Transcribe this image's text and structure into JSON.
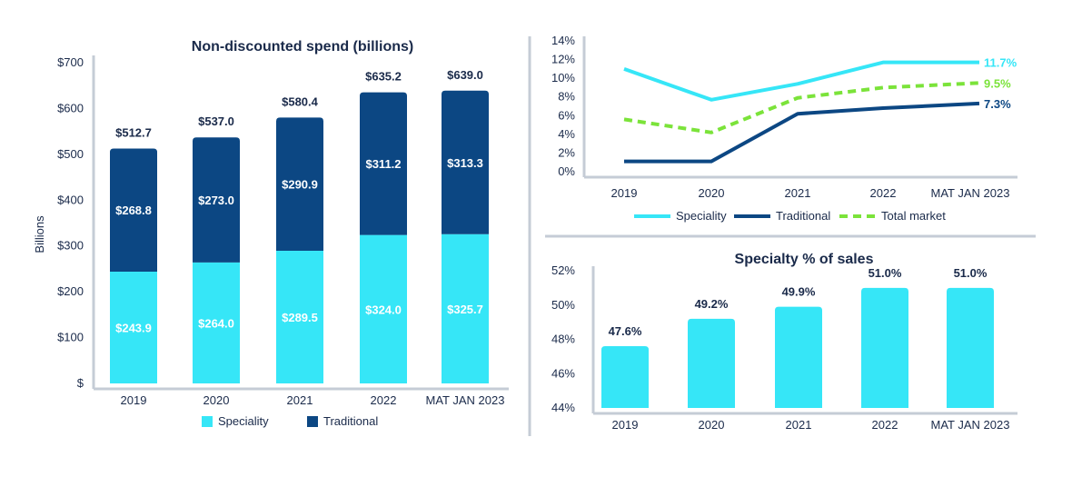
{
  "colors": {
    "speciality": "#36E6F7",
    "traditional": "#0C4783",
    "total_market": "#7BE33A",
    "axis": "#C5CCD6",
    "text": "#1a2a4a"
  },
  "chart_data": [
    {
      "id": "spend",
      "type": "bar",
      "stacked": true,
      "title": "Non-discounted spend (billions)",
      "ylabel": "Billions",
      "ylim": [
        0,
        700
      ],
      "yticks": [
        "$",
        "$100",
        "$200",
        "$300",
        "$400",
        "$500",
        "$600",
        "$700"
      ],
      "categories": [
        "2019",
        "2020",
        "2021",
        "2022",
        "MAT JAN 2023"
      ],
      "series": [
        {
          "name": "Speciality",
          "values": [
            243.9,
            264.0,
            289.5,
            324.0,
            325.7
          ],
          "labels": [
            "$243.9",
            "$264.0",
            "$289.5",
            "$324.0",
            "$325.7"
          ]
        },
        {
          "name": "Traditional",
          "values": [
            268.8,
            273.0,
            290.9,
            311.2,
            313.3
          ],
          "labels": [
            "$268.8",
            "$273.0",
            "$290.9",
            "$311.2",
            "$313.3"
          ]
        }
      ],
      "totals": [
        "$512.7",
        "$537.0",
        "$580.4",
        "$635.2",
        "$639.0"
      ],
      "legend": [
        "Speciality",
        "Traditional"
      ]
    },
    {
      "id": "growth",
      "type": "line",
      "ylim": [
        0,
        14
      ],
      "yticks": [
        "0%",
        "2%",
        "4%",
        "6%",
        "8%",
        "10%",
        "12%",
        "14%"
      ],
      "categories": [
        "2019",
        "2020",
        "2021",
        "2022",
        "MAT JAN 2023"
      ],
      "series": [
        {
          "name": "Speciality",
          "values": [
            11.0,
            7.7,
            9.4,
            11.7,
            11.7
          ]
        },
        {
          "name": "Traditional",
          "values": [
            1.1,
            1.1,
            6.2,
            6.8,
            7.3
          ]
        },
        {
          "name": "Total market",
          "values": [
            5.6,
            4.2,
            7.9,
            9.0,
            9.5
          ]
        }
      ],
      "end_labels": [
        "11.7%",
        "7.3%",
        "9.5%"
      ],
      "legend": [
        "Speciality",
        "Traditional",
        "Total market"
      ]
    },
    {
      "id": "share",
      "type": "bar",
      "title": "Specialty % of sales",
      "ylim": [
        44,
        52
      ],
      "yticks": [
        "44%",
        "46%",
        "48%",
        "50%",
        "52%"
      ],
      "categories": [
        "2019",
        "2020",
        "2021",
        "2022",
        "MAT JAN 2023"
      ],
      "values": [
        47.6,
        49.2,
        49.9,
        51.0,
        51.0
      ],
      "labels": [
        "47.6%",
        "49.2%",
        "49.9%",
        "51.0%",
        "51.0%"
      ]
    }
  ]
}
